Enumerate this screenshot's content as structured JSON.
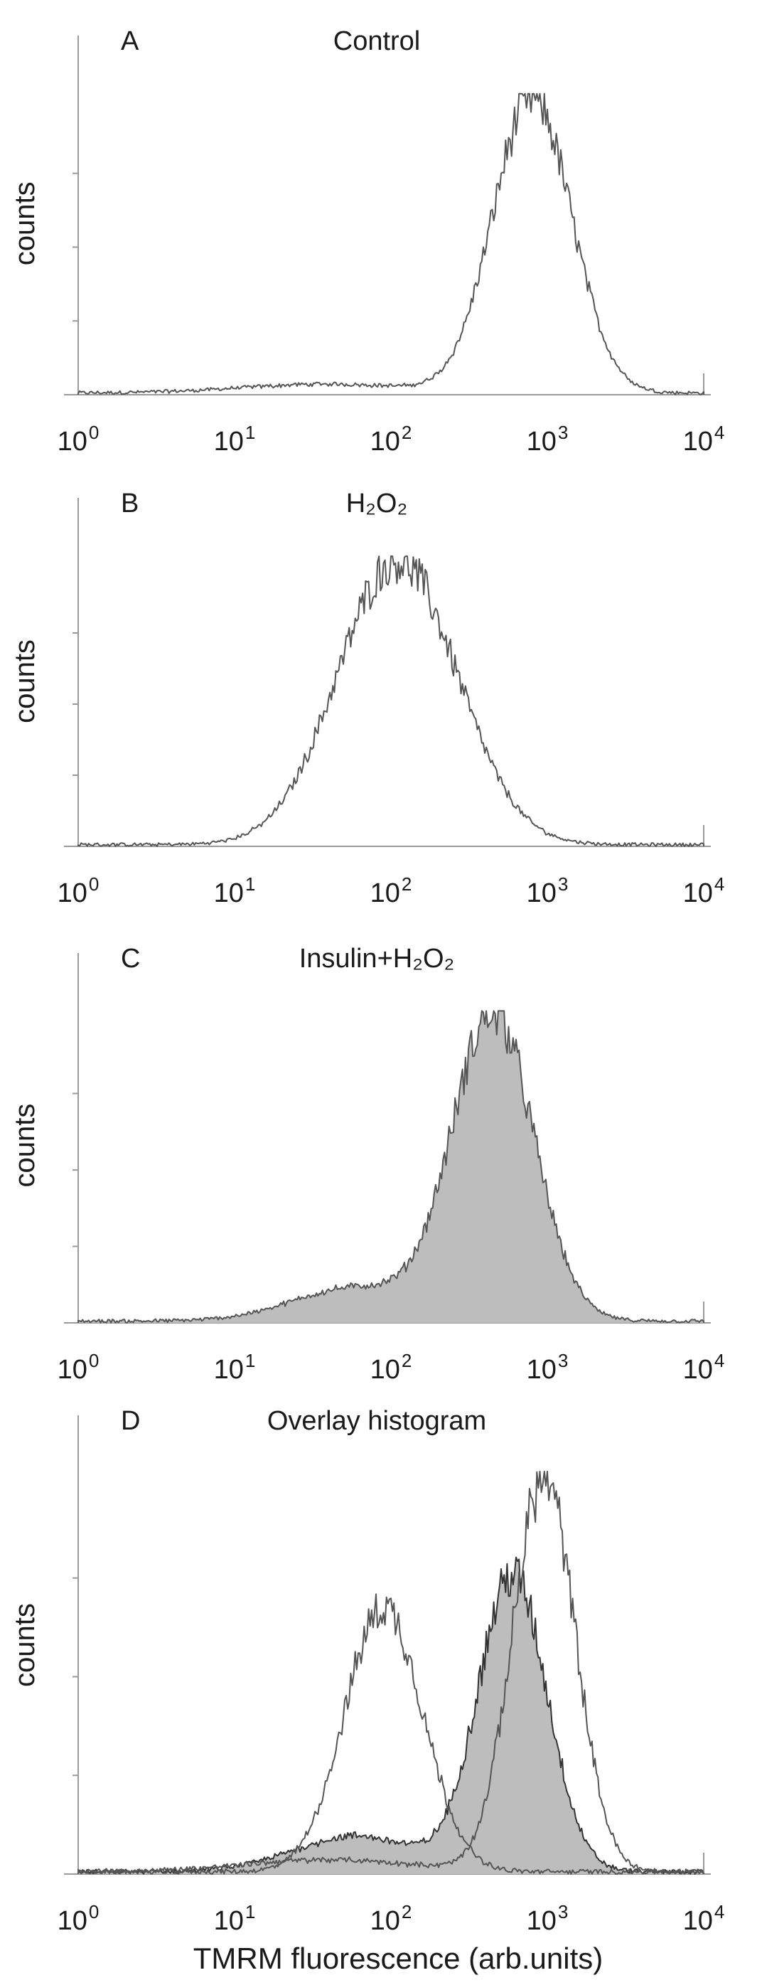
{
  "figure": {
    "xlabel": "TMRM fluorescence (arb.units)"
  },
  "chart_data": [
    {
      "type": "area",
      "panel": "A",
      "title": "Control",
      "xlabel": "",
      "ylabel": "counts",
      "x_scale": "log",
      "xlim": [
        1,
        10000
      ],
      "ylim": [
        0,
        1
      ],
      "xticks": [
        1,
        10,
        100,
        1000,
        10000
      ],
      "tick_labels": [
        {
          "base": "10",
          "exp": "0"
        },
        {
          "base": "10",
          "exp": "1"
        },
        {
          "base": "10",
          "exp": "2"
        },
        {
          "base": "10",
          "exp": "3"
        },
        {
          "base": "10",
          "exp": "4"
        }
      ],
      "series": [
        {
          "fill": false,
          "color": "#555555",
          "peaks": [
            {
              "center": 800,
              "height": 1.0,
              "width": 0.25
            },
            {
              "center": 40,
              "height": 0.03,
              "width": 0.55
            }
          ]
        }
      ]
    },
    {
      "type": "area",
      "panel": "B",
      "title": "H₂O₂",
      "xlabel": "",
      "ylabel": "counts",
      "x_scale": "log",
      "xlim": [
        1,
        10000
      ],
      "ylim": [
        0,
        1
      ],
      "xticks": [
        1,
        10,
        100,
        1000,
        10000
      ],
      "tick_labels": [
        {
          "base": "10",
          "exp": "0"
        },
        {
          "base": "10",
          "exp": "1"
        },
        {
          "base": "10",
          "exp": "2"
        },
        {
          "base": "10",
          "exp": "3"
        },
        {
          "base": "10",
          "exp": "4"
        }
      ],
      "series": [
        {
          "fill": false,
          "color": "#555555",
          "peaks": [
            {
              "center": 110,
              "height": 1.0,
              "width": 0.38
            }
          ]
        }
      ]
    },
    {
      "type": "area",
      "panel": "C",
      "title": "Insulin+H₂O₂",
      "xlabel": "",
      "ylabel": "counts",
      "x_scale": "log",
      "xlim": [
        1,
        10000
      ],
      "ylim": [
        0,
        1
      ],
      "xticks": [
        1,
        10,
        100,
        1000,
        10000
      ],
      "tick_labels": [
        {
          "base": "10",
          "exp": "0"
        },
        {
          "base": "10",
          "exp": "1"
        },
        {
          "base": "10",
          "exp": "2"
        },
        {
          "base": "10",
          "exp": "3"
        },
        {
          "base": "10",
          "exp": "4"
        }
      ],
      "series": [
        {
          "fill": true,
          "color": "#555555",
          "fill_color": "#bdbdbd",
          "peaks": [
            {
              "center": 450,
              "height": 1.0,
              "width": 0.26
            },
            {
              "center": 60,
              "height": 0.11,
              "width": 0.4
            }
          ]
        }
      ]
    },
    {
      "type": "area",
      "panel": "D",
      "title": "Overlay histogram",
      "xlabel": "",
      "ylabel": "counts",
      "x_scale": "log",
      "xlim": [
        1,
        10000
      ],
      "ylim": [
        0,
        1
      ],
      "xticks": [
        1,
        10,
        100,
        1000,
        10000
      ],
      "tick_labels": [
        {
          "base": "10",
          "exp": "0"
        },
        {
          "base": "10",
          "exp": "1"
        },
        {
          "base": "10",
          "exp": "2"
        },
        {
          "base": "10",
          "exp": "3"
        },
        {
          "base": "10",
          "exp": "4"
        }
      ],
      "series": [
        {
          "fill": true,
          "color": "#333333",
          "fill_color": "#bdbdbd",
          "peaks": [
            {
              "center": 600,
              "height": 0.75,
              "width": 0.22
            },
            {
              "center": 60,
              "height": 0.09,
              "width": 0.4
            }
          ]
        },
        {
          "fill": false,
          "color": "#555555",
          "peaks": [
            {
              "center": 90,
              "height": 0.67,
              "width": 0.25
            }
          ]
        },
        {
          "fill": false,
          "color": "#555555",
          "peaks": [
            {
              "center": 950,
              "height": 1.0,
              "width": 0.2
            },
            {
              "center": 40,
              "height": 0.03,
              "width": 0.55
            }
          ]
        }
      ]
    }
  ]
}
